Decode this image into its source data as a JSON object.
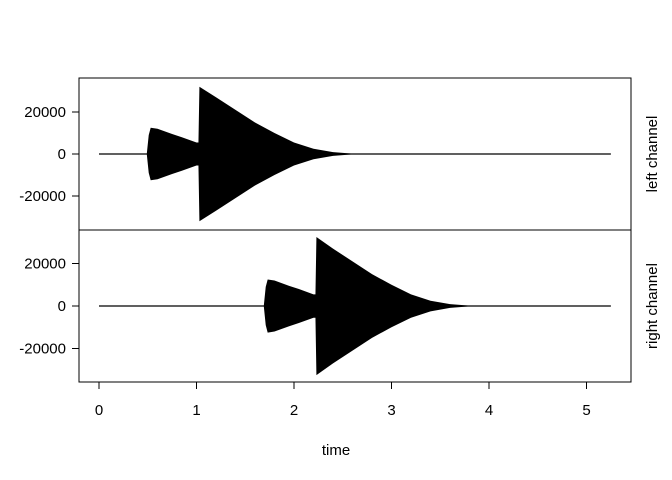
{
  "chart_data": {
    "type": "area",
    "xlabel": "time",
    "xlim": [
      0,
      5.25
    ],
    "xticks": [
      0,
      1,
      2,
      3,
      4,
      5
    ],
    "grid": false,
    "panels": [
      {
        "name": "left channel",
        "ylim": [
          -36000,
          36000
        ],
        "yticks": [
          20000,
          0,
          -20000
        ],
        "envelope": [
          [
            0,
            0
          ],
          [
            0.49,
            0
          ],
          [
            0.51,
            9000
          ],
          [
            0.53,
            12500
          ],
          [
            0.6,
            12000
          ],
          [
            0.75,
            9500
          ],
          [
            0.85,
            8000
          ],
          [
            1.0,
            5500
          ],
          [
            1.02,
            5500
          ],
          [
            1.03,
            32000
          ],
          [
            1.2,
            27000
          ],
          [
            1.4,
            21000
          ],
          [
            1.6,
            15000
          ],
          [
            1.8,
            10000
          ],
          [
            2.0,
            5500
          ],
          [
            2.2,
            2500
          ],
          [
            2.4,
            900
          ],
          [
            2.6,
            200
          ],
          [
            2.8,
            0
          ],
          [
            5.25,
            0
          ]
        ]
      },
      {
        "name": "right channel",
        "ylim": [
          -36000,
          36000
        ],
        "yticks": [
          20000,
          0,
          -20000
        ],
        "envelope": [
          [
            0,
            0
          ],
          [
            1.69,
            0
          ],
          [
            1.71,
            9000
          ],
          [
            1.73,
            12500
          ],
          [
            1.8,
            12000
          ],
          [
            1.95,
            9500
          ],
          [
            2.05,
            8000
          ],
          [
            2.2,
            5500
          ],
          [
            2.22,
            5500
          ],
          [
            2.23,
            32500
          ],
          [
            2.4,
            27000
          ],
          [
            2.6,
            21000
          ],
          [
            2.8,
            15000
          ],
          [
            3.0,
            10000
          ],
          [
            3.2,
            5500
          ],
          [
            3.4,
            2500
          ],
          [
            3.6,
            900
          ],
          [
            3.8,
            200
          ],
          [
            4.0,
            0
          ],
          [
            5.25,
            0
          ]
        ]
      }
    ]
  }
}
